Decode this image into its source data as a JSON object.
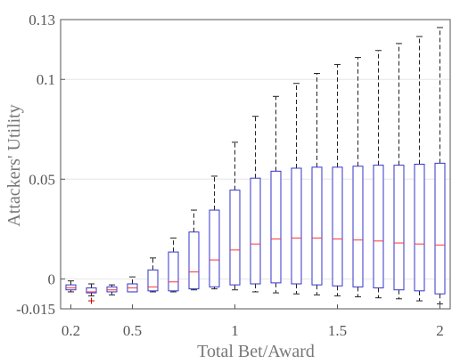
{
  "chart_data": {
    "type": "box",
    "xlabel": "Total Bet/Award",
    "ylabel": "Attackers' Utility",
    "xlim": [
      0.15,
      2.05
    ],
    "ylim": [
      -0.015,
      0.13
    ],
    "x_ticks": [
      {
        "value": 0.2,
        "label": "0.2"
      },
      {
        "value": 0.5,
        "label": "0.5"
      },
      {
        "value": 1.0,
        "label": "1"
      },
      {
        "value": 1.5,
        "label": "1.5"
      },
      {
        "value": 2.0,
        "label": "2"
      }
    ],
    "y_ticks": [
      {
        "value": -0.015,
        "label": "-0.015"
      },
      {
        "value": 0,
        "label": "0"
      },
      {
        "value": 0.05,
        "label": "0.05"
      },
      {
        "value": 0.1,
        "label": "0.1"
      },
      {
        "value": 0.13,
        "label": "0.13"
      }
    ],
    "grid": true,
    "box_color": "#3333cc",
    "median_color": "#ff3333",
    "whisker_color": "#222222",
    "outlier_color": "#cc0000",
    "boxes": [
      {
        "x": 0.2,
        "whisker_low": -0.0065,
        "q1": -0.0055,
        "median": -0.0045,
        "q3": -0.003,
        "whisker_high": -0.001
      },
      {
        "x": 0.3,
        "whisker_low": -0.0085,
        "q1": -0.007,
        "median": -0.0065,
        "q3": -0.0045,
        "whisker_high": -0.0025,
        "outliers": [
          -0.011
        ]
      },
      {
        "x": 0.4,
        "whisker_low": -0.008,
        "q1": -0.0065,
        "median": -0.0055,
        "q3": -0.004,
        "whisker_high": -0.003
      },
      {
        "x": 0.5,
        "whisker_low": -0.0065,
        "q1": -0.0065,
        "median": -0.0045,
        "q3": -0.0025,
        "whisker_high": 0.001
      },
      {
        "x": 0.6,
        "whisker_low": -0.0065,
        "q1": -0.006,
        "median": -0.004,
        "q3": 0.0045,
        "whisker_high": 0.0105
      },
      {
        "x": 0.7,
        "whisker_low": -0.0065,
        "q1": -0.006,
        "median": -0.0015,
        "q3": 0.0135,
        "whisker_high": 0.0205
      },
      {
        "x": 0.8,
        "whisker_low": -0.0055,
        "q1": -0.005,
        "median": 0.0035,
        "q3": 0.0235,
        "whisker_high": 0.0345
      },
      {
        "x": 0.9,
        "whisker_low": -0.005,
        "q1": -0.004,
        "median": 0.0095,
        "q3": 0.0345,
        "whisker_high": 0.0515
      },
      {
        "x": 1.0,
        "whisker_low": -0.0055,
        "q1": -0.003,
        "median": 0.0145,
        "q3": 0.0445,
        "whisker_high": 0.0685
      },
      {
        "x": 1.1,
        "whisker_low": -0.0065,
        "q1": -0.0025,
        "median": 0.0175,
        "q3": 0.0505,
        "whisker_high": 0.0815
      },
      {
        "x": 1.2,
        "whisker_low": -0.007,
        "q1": -0.002,
        "median": 0.02,
        "q3": 0.054,
        "whisker_high": 0.0915
      },
      {
        "x": 1.3,
        "whisker_low": -0.0075,
        "q1": -0.0025,
        "median": 0.0205,
        "q3": 0.0555,
        "whisker_high": 0.098
      },
      {
        "x": 1.4,
        "whisker_low": -0.008,
        "q1": -0.003,
        "median": 0.0205,
        "q3": 0.056,
        "whisker_high": 0.103
      },
      {
        "x": 1.5,
        "whisker_low": -0.0085,
        "q1": -0.0035,
        "median": 0.02,
        "q3": 0.056,
        "whisker_high": 0.1075
      },
      {
        "x": 1.6,
        "whisker_low": -0.009,
        "q1": -0.004,
        "median": 0.0195,
        "q3": 0.0565,
        "whisker_high": 0.111
      },
      {
        "x": 1.7,
        "whisker_low": -0.0095,
        "q1": -0.0045,
        "median": 0.019,
        "q3": 0.057,
        "whisker_high": 0.1145
      },
      {
        "x": 1.8,
        "whisker_low": -0.01,
        "q1": -0.0055,
        "median": 0.018,
        "q3": 0.057,
        "whisker_high": 0.118
      },
      {
        "x": 1.9,
        "whisker_low": -0.011,
        "q1": -0.006,
        "median": 0.0175,
        "q3": 0.0575,
        "whisker_high": 0.1215
      },
      {
        "x": 2.0,
        "whisker_low": -0.0125,
        "q1": -0.0075,
        "median": 0.017,
        "q3": 0.058,
        "whisker_high": 0.126
      }
    ]
  }
}
